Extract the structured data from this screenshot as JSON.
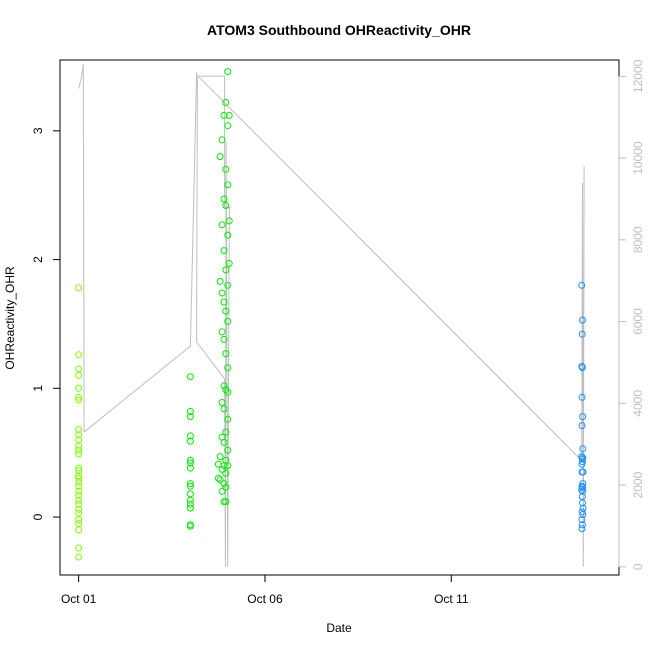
{
  "chart_data": {
    "type": "scatter",
    "title": "ATOM3 Southbound OHReactivity_OHR",
    "xlabel": "Date",
    "ylabel": "OHReactivity_OHR",
    "x_axis": {
      "type": "date",
      "range": [
        "2016-09-30T12:00",
        "2016-10-15T12:00"
      ],
      "ticks": [
        {
          "value": "2016-10-01T00:00",
          "label": "Oct 01"
        },
        {
          "value": "2016-10-06T00:00",
          "label": "Oct 06"
        },
        {
          "value": "2016-10-11T00:00",
          "label": "Oct 11"
        }
      ]
    },
    "y_axis_left": {
      "range": [
        -0.45,
        3.55
      ],
      "ticks": [
        0,
        1,
        2,
        3
      ]
    },
    "y_axis_right": {
      "range": [
        -200,
        12400
      ],
      "ticks": [
        0,
        2000,
        4000,
        6000,
        8000,
        10000,
        12000
      ],
      "color": "#bebebe"
    },
    "grid": false,
    "legend": "none",
    "series": [
      {
        "color": "#7fff00",
        "points": [
          {
            "x": "2016-10-01T00:00",
            "y": 1.78
          },
          {
            "x": "2016-10-01T00:05",
            "y": 1.26
          },
          {
            "x": "2016-10-01T00:02",
            "y": 1.15
          },
          {
            "x": "2016-10-01T00:03",
            "y": 1.1
          },
          {
            "x": "2016-10-01T00:01",
            "y": 1.0
          },
          {
            "x": "2016-10-01T00:00",
            "y": 0.93
          },
          {
            "x": "2016-10-01T00:02",
            "y": 0.91
          },
          {
            "x": "2016-10-01T00:00",
            "y": 0.68
          },
          {
            "x": "2016-10-01T00:04",
            "y": 0.64
          },
          {
            "x": "2016-10-01T00:06",
            "y": 0.6
          },
          {
            "x": "2016-10-01T00:03",
            "y": 0.55
          },
          {
            "x": "2016-10-01T00:00",
            "y": 0.52
          },
          {
            "x": "2016-10-01T00:02",
            "y": 0.49
          },
          {
            "x": "2016-10-01T00:01",
            "y": 0.38
          },
          {
            "x": "2016-10-01T00:04",
            "y": 0.36
          },
          {
            "x": "2016-10-01T00:00",
            "y": 0.32
          },
          {
            "x": "2016-10-01T00:03",
            "y": 0.3
          },
          {
            "x": "2016-10-01T00:05",
            "y": 0.27
          },
          {
            "x": "2016-10-01T00:01",
            "y": 0.24
          },
          {
            "x": "2016-10-01T00:02",
            "y": 0.2
          },
          {
            "x": "2016-10-01T00:04",
            "y": 0.17
          },
          {
            "x": "2016-10-01T00:00",
            "y": 0.13
          },
          {
            "x": "2016-10-01T00:03",
            "y": 0.1
          },
          {
            "x": "2016-10-01T00:05",
            "y": 0.06
          },
          {
            "x": "2016-10-01T00:01",
            "y": 0.03
          },
          {
            "x": "2016-10-01T00:02",
            "y": -0.02
          },
          {
            "x": "2016-10-01T00:04",
            "y": -0.05
          },
          {
            "x": "2016-10-01T00:03",
            "y": -0.1
          },
          {
            "x": "2016-10-01T00:01",
            "y": -0.24
          },
          {
            "x": "2016-10-01T00:02",
            "y": -0.31
          }
        ]
      },
      {
        "color": "#00ee00",
        "points": [
          {
            "x": "2016-10-04T00:00",
            "y": 1.09
          },
          {
            "x": "2016-10-04T00:00",
            "y": 0.82
          },
          {
            "x": "2016-10-04T00:00",
            "y": 0.78
          },
          {
            "x": "2016-10-04T00:00",
            "y": 0.63
          },
          {
            "x": "2016-10-04T00:00",
            "y": 0.59
          },
          {
            "x": "2016-10-04T00:00",
            "y": 0.44
          },
          {
            "x": "2016-10-04T00:00",
            "y": 0.42
          },
          {
            "x": "2016-10-04T00:00",
            "y": 0.38
          },
          {
            "x": "2016-10-04T00:00",
            "y": 0.26
          },
          {
            "x": "2016-10-04T00:00",
            "y": 0.24
          },
          {
            "x": "2016-10-04T00:00",
            "y": 0.18
          },
          {
            "x": "2016-10-04T00:00",
            "y": 0.13
          },
          {
            "x": "2016-10-04T00:00",
            "y": 0.1
          },
          {
            "x": "2016-10-04T00:00",
            "y": 0.07
          },
          {
            "x": "2016-10-04T00:00",
            "y": -0.07
          },
          {
            "x": "2016-10-04T00:00",
            "y": -0.06
          },
          {
            "x": "2016-10-05T00:00",
            "y": 3.46
          },
          {
            "x": "2016-10-04T22:48",
            "y": 3.22
          },
          {
            "x": "2016-10-05T00:58",
            "y": 3.12
          },
          {
            "x": "2016-10-04T21:36",
            "y": 3.12
          },
          {
            "x": "2016-10-05T00:00",
            "y": 3.04
          },
          {
            "x": "2016-10-04T20:24",
            "y": 2.93
          },
          {
            "x": "2016-10-04T19:12",
            "y": 2.8
          },
          {
            "x": "2016-10-04T22:48",
            "y": 2.7
          },
          {
            "x": "2016-10-05T00:00",
            "y": 2.58
          },
          {
            "x": "2016-10-04T21:36",
            "y": 2.47
          },
          {
            "x": "2016-10-04T22:48",
            "y": 2.42
          },
          {
            "x": "2016-10-05T00:58",
            "y": 2.3
          },
          {
            "x": "2016-10-04T20:24",
            "y": 2.27
          },
          {
            "x": "2016-10-05T00:00",
            "y": 2.19
          },
          {
            "x": "2016-10-04T21:36",
            "y": 2.07
          },
          {
            "x": "2016-10-05T00:58",
            "y": 1.97
          },
          {
            "x": "2016-10-04T22:48",
            "y": 1.92
          },
          {
            "x": "2016-10-04T19:12",
            "y": 1.83
          },
          {
            "x": "2016-10-05T00:00",
            "y": 1.8
          },
          {
            "x": "2016-10-04T20:24",
            "y": 1.74
          },
          {
            "x": "2016-10-04T21:36",
            "y": 1.67
          },
          {
            "x": "2016-10-04T22:48",
            "y": 1.6
          },
          {
            "x": "2016-10-05T00:00",
            "y": 1.52
          },
          {
            "x": "2016-10-04T20:24",
            "y": 1.44
          },
          {
            "x": "2016-10-04T21:36",
            "y": 1.38
          },
          {
            "x": "2016-10-04T22:48",
            "y": 1.27
          },
          {
            "x": "2016-10-05T00:00",
            "y": 1.16
          },
          {
            "x": "2016-10-04T21:36",
            "y": 1.02
          },
          {
            "x": "2016-10-04T22:48",
            "y": 0.99
          },
          {
            "x": "2016-10-05T00:00",
            "y": 0.97
          },
          {
            "x": "2016-10-04T20:24",
            "y": 0.89
          },
          {
            "x": "2016-10-04T21:36",
            "y": 0.84
          },
          {
            "x": "2016-10-05T00:00",
            "y": 0.76
          },
          {
            "x": "2016-10-04T22:48",
            "y": 0.66
          },
          {
            "x": "2016-10-04T20:24",
            "y": 0.62
          },
          {
            "x": "2016-10-04T21:36",
            "y": 0.58
          },
          {
            "x": "2016-10-05T00:00",
            "y": 0.52
          },
          {
            "x": "2016-10-04T19:12",
            "y": 0.47
          },
          {
            "x": "2016-10-04T22:48",
            "y": 0.44
          },
          {
            "x": "2016-10-04T18:00",
            "y": 0.41
          },
          {
            "x": "2016-10-04T21:36",
            "y": 0.4
          },
          {
            "x": "2016-10-05T00:00",
            "y": 0.4
          },
          {
            "x": "2016-10-04T20:24",
            "y": 0.37
          },
          {
            "x": "2016-10-04T22:48",
            "y": 0.34
          },
          {
            "x": "2016-10-04T18:00",
            "y": 0.3
          },
          {
            "x": "2016-10-04T19:12",
            "y": 0.29
          },
          {
            "x": "2016-10-04T21:36",
            "y": 0.26
          },
          {
            "x": "2016-10-04T22:48",
            "y": 0.23
          },
          {
            "x": "2016-10-04T20:24",
            "y": 0.2
          },
          {
            "x": "2016-10-04T21:36",
            "y": 0.12
          },
          {
            "x": "2016-10-04T22:48",
            "y": 0.12
          }
        ]
      },
      {
        "color": "#1e90ff",
        "points": [
          {
            "x": "2016-10-14T12:00",
            "y": 1.8
          },
          {
            "x": "2016-10-14T12:30",
            "y": 1.53
          },
          {
            "x": "2016-10-14T12:20",
            "y": 1.42
          },
          {
            "x": "2016-10-14T12:05",
            "y": 1.17
          },
          {
            "x": "2016-10-14T12:25",
            "y": 1.16
          },
          {
            "x": "2016-10-14T12:15",
            "y": 0.93
          },
          {
            "x": "2016-10-14T12:35",
            "y": 0.78
          },
          {
            "x": "2016-10-14T12:10",
            "y": 0.71
          },
          {
            "x": "2016-10-14T12:40",
            "y": 0.53
          },
          {
            "x": "2016-10-14T12:00",
            "y": 0.47
          },
          {
            "x": "2016-10-14T12:45",
            "y": 0.46
          },
          {
            "x": "2016-10-14T12:20",
            "y": 0.45
          },
          {
            "x": "2016-10-14T12:30",
            "y": 0.43
          },
          {
            "x": "2016-10-14T12:05",
            "y": 0.41
          },
          {
            "x": "2016-10-14T12:50",
            "y": 0.35
          },
          {
            "x": "2016-10-14T12:15",
            "y": 0.35
          },
          {
            "x": "2016-10-14T12:40",
            "y": 0.26
          },
          {
            "x": "2016-10-14T12:10",
            "y": 0.24
          },
          {
            "x": "2016-10-14T12:25",
            "y": 0.23
          },
          {
            "x": "2016-10-14T12:35",
            "y": 0.23
          },
          {
            "x": "2016-10-14T12:00",
            "y": 0.21
          },
          {
            "x": "2016-10-14T12:45",
            "y": 0.2
          },
          {
            "x": "2016-10-14T12:20",
            "y": 0.16
          },
          {
            "x": "2016-10-14T12:30",
            "y": 0.11
          },
          {
            "x": "2016-10-14T12:50",
            "y": 0.07
          },
          {
            "x": "2016-10-14T12:15",
            "y": 0.04
          },
          {
            "x": "2016-10-14T12:40",
            "y": 0.02
          },
          {
            "x": "2016-10-14T12:05",
            "y": -0.02
          },
          {
            "x": "2016-10-14T12:25",
            "y": -0.06
          },
          {
            "x": "2016-10-14T12:10",
            "y": -0.09
          }
        ]
      }
    ],
    "right_axis_line": {
      "color": "#bebebe",
      "points": [
        {
          "x": "2016-10-01T00:00",
          "y": 11700
        },
        {
          "x": "2016-10-01T02:00",
          "y": 12000
        },
        {
          "x": "2016-10-01T03:00",
          "y": 12300
        },
        {
          "x": "2016-10-01T03:30",
          "y": 3300
        },
        {
          "x": "2016-10-04T00:00",
          "y": 5400
        },
        {
          "x": "2016-10-04T04:00",
          "y": 12100
        },
        {
          "x": "2016-10-04T04:30",
          "y": 11900
        },
        {
          "x": "2016-10-04T04:00",
          "y": 5500
        },
        {
          "x": "2016-10-04T22:00",
          "y": 4600
        },
        {
          "x": "2016-10-04T22:30",
          "y": 0
        },
        {
          "x": "2016-10-04T23:00",
          "y": 10400
        },
        {
          "x": "2016-10-05T00:00",
          "y": 0
        },
        {
          "x": "2016-10-05T01:00",
          "y": 8700
        },
        {
          "x": "2016-10-05T01:30",
          "y": 8800
        },
        {
          "x": "2016-10-04T22:00",
          "y": 8800
        },
        {
          "x": "2016-10-04T22:00",
          "y": 12000
        },
        {
          "x": "2016-10-04T05:00",
          "y": 12000
        },
        {
          "x": "2016-10-14T12:00",
          "y": 2600
        },
        {
          "x": "2016-10-14T12:30",
          "y": 9400
        },
        {
          "x": "2016-10-14T13:00",
          "y": 0
        },
        {
          "x": "2016-10-14T13:30",
          "y": 9800
        }
      ]
    }
  }
}
